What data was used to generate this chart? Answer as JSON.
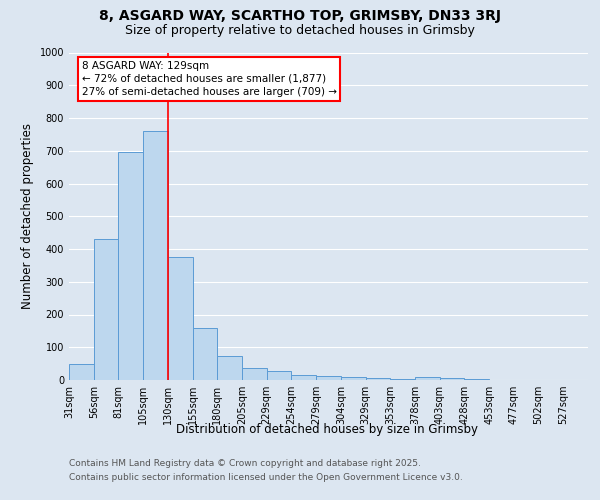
{
  "title_line1": "8, ASGARD WAY, SCARTHO TOP, GRIMSBY, DN33 3RJ",
  "title_line2": "Size of property relative to detached houses in Grimsby",
  "xlabel": "Distribution of detached houses by size in Grimsby",
  "ylabel": "Number of detached properties",
  "categories": [
    "31sqm",
    "56sqm",
    "81sqm",
    "105sqm",
    "130sqm",
    "155sqm",
    "180sqm",
    "205sqm",
    "229sqm",
    "254sqm",
    "279sqm",
    "304sqm",
    "329sqm",
    "353sqm",
    "378sqm",
    "403sqm",
    "428sqm",
    "453sqm",
    "477sqm",
    "502sqm",
    "527sqm"
  ],
  "values": [
    50,
    430,
    695,
    760,
    375,
    160,
    72,
    38,
    28,
    15,
    13,
    10,
    5,
    3,
    8,
    5,
    3,
    0,
    0,
    0,
    0
  ],
  "bar_color": "#bdd7ee",
  "bar_edge_color": "#5b9bd5",
  "background_color": "#dce6f1",
  "plot_bg_color": "#dce6f1",
  "red_line_x": 4,
  "annotation_line1": "8 ASGARD WAY: 129sqm",
  "annotation_line2": "← 72% of detached houses are smaller (1,877)",
  "annotation_line3": "27% of semi-detached houses are larger (709) →",
  "ylim": [
    0,
    1000
  ],
  "yticks": [
    0,
    100,
    200,
    300,
    400,
    500,
    600,
    700,
    800,
    900,
    1000
  ],
  "footnote1": "Contains HM Land Registry data © Crown copyright and database right 2025.",
  "footnote2": "Contains public sector information licensed under the Open Government Licence v3.0.",
  "grid_color": "#ffffff",
  "title_fontsize": 10,
  "subtitle_fontsize": 9,
  "axis_label_fontsize": 8.5,
  "tick_fontsize": 7,
  "annotation_fontsize": 7.5,
  "footnote_fontsize": 6.5
}
